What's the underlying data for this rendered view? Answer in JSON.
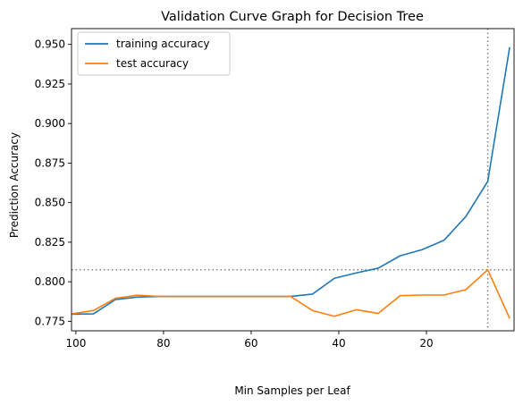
{
  "chart_data": {
    "type": "line",
    "title": "Validation Curve Graph for Decision Tree",
    "xlabel": "Min Samples per Leaf",
    "ylabel": "Prediction Accuracy",
    "xlim": [
      101,
      0
    ],
    "ylim": [
      0.769,
      0.96
    ],
    "x_inverted": true,
    "grid": false,
    "legend_position": "upper-left",
    "xticks": [
      100,
      80,
      60,
      40,
      20
    ],
    "yticks": [
      "0.775",
      "0.800",
      "0.825",
      "0.850",
      "0.875",
      "0.900",
      "0.925",
      "0.950"
    ],
    "x": [
      101,
      96,
      91,
      86,
      81,
      76,
      71,
      66,
      61,
      56,
      51,
      46,
      41,
      36,
      31,
      26,
      21,
      16,
      11,
      6,
      1
    ],
    "series": [
      {
        "name": "training accuracy",
        "color": "#1f77b4",
        "values": [
          0.7795,
          0.7797,
          0.7887,
          0.7903,
          0.7907,
          0.7907,
          0.7907,
          0.7907,
          0.7907,
          0.7907,
          0.7907,
          0.7922,
          0.8022,
          0.8056,
          0.8086,
          0.8164,
          0.8203,
          0.8262,
          0.8412,
          0.8635,
          0.9483
        ]
      },
      {
        "name": "test accuracy",
        "color": "#ff7f0e",
        "values": [
          0.7797,
          0.7818,
          0.7895,
          0.7915,
          0.7907,
          0.7907,
          0.7907,
          0.7907,
          0.7907,
          0.7907,
          0.7907,
          0.7818,
          0.7782,
          0.7823,
          0.78,
          0.7912,
          0.7916,
          0.7916,
          0.795,
          0.8076,
          0.7768
        ]
      }
    ],
    "reference_lines": [
      {
        "orientation": "horizontal",
        "value": 0.8076,
        "style": "dotted",
        "color": "#808080"
      },
      {
        "orientation": "vertical",
        "value": 6,
        "style": "dotted",
        "color": "#808080"
      }
    ]
  }
}
